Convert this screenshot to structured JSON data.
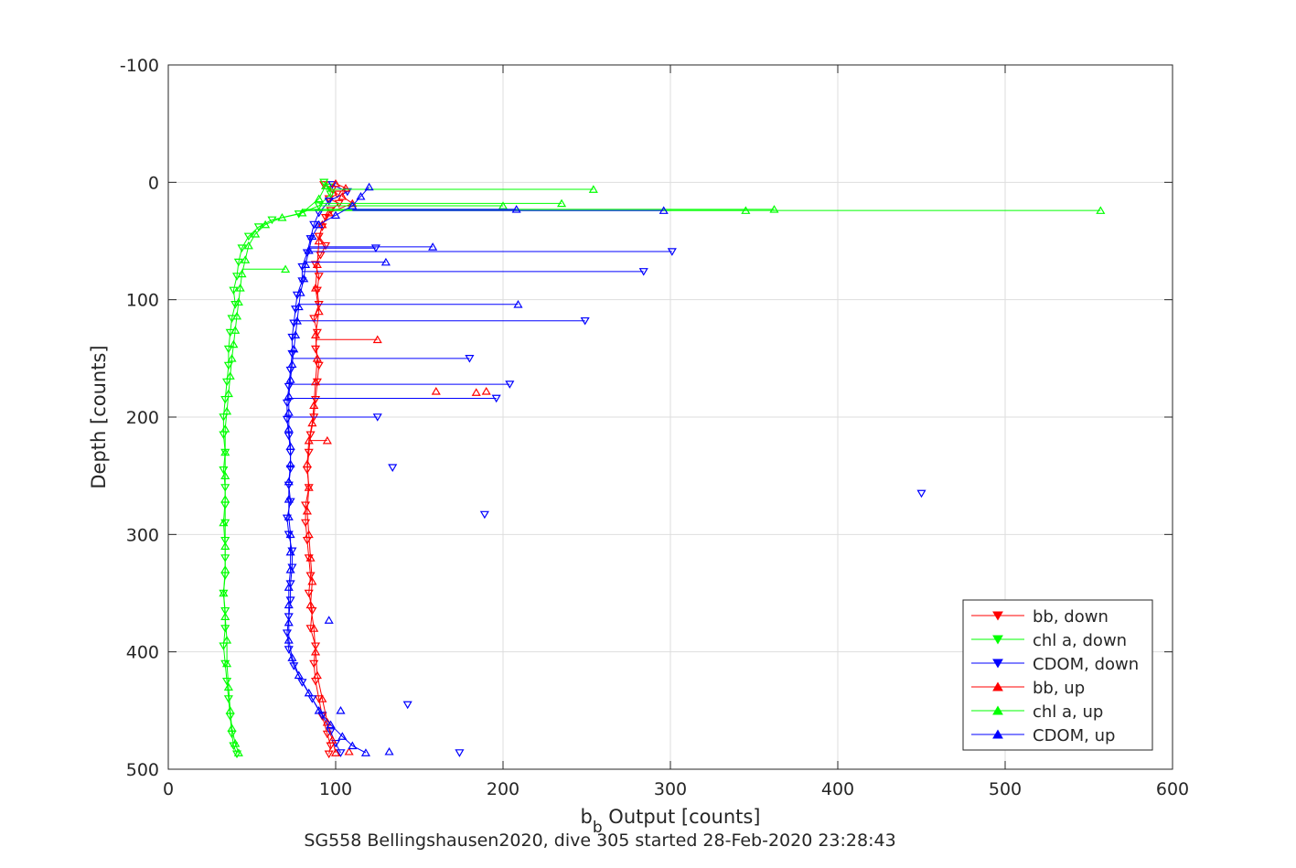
{
  "chart_data": {
    "type": "line",
    "title": "SG558 Bellingshausen2020, dive 305 started 28-Feb-2020 23:28:43",
    "xlabel_main": "b",
    "xlabel_sub": "b",
    "xlabel_rest": " Output [counts]",
    "ylabel": "Depth [counts]",
    "xlim": [
      0,
      600
    ],
    "ylim": [
      -100,
      500
    ],
    "y_reversed": true,
    "grid": true,
    "legend_position": "bottom-right",
    "xticks": [
      0,
      100,
      200,
      300,
      400,
      500,
      600
    ],
    "yticks": [
      -100,
      0,
      100,
      200,
      300,
      400,
      500
    ],
    "xtick_labels": [
      "0",
      "100",
      "200",
      "300",
      "400",
      "500",
      "600"
    ],
    "ytick_labels": [
      "-100",
      "0",
      "100",
      "200",
      "300",
      "400",
      "500"
    ],
    "series": [
      {
        "name": "bb, down",
        "color": "#ff0000",
        "marker": "triangle-down",
        "points": [
          [
            93,
            2
          ],
          [
            98,
            6
          ],
          [
            101,
            10
          ],
          [
            96,
            14
          ],
          [
            102,
            18
          ],
          [
            97,
            24
          ],
          [
            94,
            30
          ],
          [
            92,
            38
          ],
          [
            90,
            46
          ],
          [
            94,
            54
          ],
          [
            91,
            62
          ],
          [
            88,
            70
          ],
          [
            90,
            80
          ],
          [
            89,
            92
          ],
          [
            90,
            104
          ],
          [
            87,
            116
          ],
          [
            89,
            128
          ],
          [
            88,
            142
          ],
          [
            90,
            156
          ],
          [
            89,
            170
          ],
          [
            88,
            185
          ],
          [
            87,
            200
          ],
          [
            85,
            215
          ],
          [
            84,
            230
          ],
          [
            83,
            245
          ],
          [
            84,
            260
          ],
          [
            82,
            275
          ],
          [
            82,
            290
          ],
          [
            83,
            305
          ],
          [
            84,
            320
          ],
          [
            85,
            335
          ],
          [
            84,
            350
          ],
          [
            86,
            365
          ],
          [
            85,
            380
          ],
          [
            88,
            395
          ],
          [
            87,
            410
          ],
          [
            88,
            425
          ],
          [
            90,
            440
          ],
          [
            92,
            455
          ],
          [
            95,
            470
          ],
          [
            97,
            480
          ],
          [
            96,
            487
          ]
        ]
      },
      {
        "name": "chl a, down",
        "color": "#00ff00",
        "marker": "triangle-down",
        "points": [
          [
            93,
            0
          ],
          [
            96,
            4
          ],
          [
            97,
            10
          ],
          [
            90,
            20
          ],
          [
            78,
            27
          ],
          [
            62,
            32
          ],
          [
            54,
            38
          ],
          [
            48,
            46
          ],
          [
            44,
            56
          ],
          [
            42,
            68
          ],
          [
            41,
            80
          ],
          [
            39,
            92
          ],
          [
            40,
            104
          ],
          [
            38,
            116
          ],
          [
            37,
            128
          ],
          [
            36,
            142
          ],
          [
            36,
            156
          ],
          [
            35,
            170
          ],
          [
            34,
            185
          ],
          [
            33,
            200
          ],
          [
            33,
            215
          ],
          [
            34,
            230
          ],
          [
            33,
            245
          ],
          [
            34,
            260
          ],
          [
            34,
            275
          ],
          [
            34,
            290
          ],
          [
            34,
            305
          ],
          [
            34,
            320
          ],
          [
            34,
            335
          ],
          [
            33,
            350
          ],
          [
            34,
            365
          ],
          [
            34,
            380
          ],
          [
            33,
            395
          ],
          [
            34,
            410
          ],
          [
            35,
            425
          ],
          [
            36,
            440
          ],
          [
            37,
            455
          ],
          [
            38,
            470
          ],
          [
            39,
            480
          ],
          [
            41,
            487
          ]
        ]
      },
      {
        "name": "CDOM, down",
        "color": "#0000ff",
        "marker": "triangle-down",
        "points": [
          [
            98,
            2
          ],
          [
            107,
            8
          ],
          [
            96,
            16
          ],
          [
            90,
            26
          ],
          [
            87,
            36
          ],
          [
            85,
            48
          ],
          [
            83,
            60
          ],
          [
            80,
            72
          ],
          [
            80,
            84
          ],
          [
            77,
            96
          ],
          [
            76,
            108
          ],
          [
            75,
            120
          ],
          [
            74,
            132
          ],
          [
            74,
            146
          ],
          [
            73,
            160
          ],
          [
            72,
            174
          ],
          [
            71,
            188
          ],
          [
            71,
            202
          ],
          [
            72,
            216
          ],
          [
            73,
            230
          ],
          [
            73,
            244
          ],
          [
            72,
            258
          ],
          [
            73,
            272
          ],
          [
            71,
            286
          ],
          [
            72,
            300
          ],
          [
            74,
            314
          ],
          [
            74,
            328
          ],
          [
            73,
            342
          ],
          [
            73,
            356
          ],
          [
            72,
            370
          ],
          [
            71,
            384
          ],
          [
            72,
            398
          ],
          [
            75,
            412
          ],
          [
            80,
            426
          ],
          [
            86,
            440
          ],
          [
            92,
            454
          ],
          [
            97,
            468
          ],
          [
            100,
            478
          ],
          [
            103,
            486
          ]
        ],
        "spikes": [
          [
            124,
            56
          ],
          [
            301,
            59
          ],
          [
            284,
            76
          ],
          [
            249,
            118
          ],
          [
            180,
            150
          ],
          [
            204,
            172
          ],
          [
            196,
            184
          ],
          [
            125,
            200
          ],
          [
            134,
            243
          ],
          [
            189,
            283
          ],
          [
            450,
            265
          ],
          [
            143,
            445
          ],
          [
            174,
            486
          ]
        ]
      },
      {
        "name": "bb, up",
        "color": "#ff0000",
        "marker": "triangle-up",
        "points": [
          [
            100,
            1
          ],
          [
            106,
            5
          ],
          [
            104,
            12
          ],
          [
            110,
            18
          ],
          [
            96,
            26
          ],
          [
            92,
            36
          ],
          [
            90,
            50
          ],
          [
            89,
            70
          ],
          [
            88,
            90
          ],
          [
            90,
            110
          ],
          [
            88,
            130
          ],
          [
            89,
            150
          ],
          [
            88,
            170
          ],
          [
            87,
            190
          ],
          [
            86,
            205
          ],
          [
            84,
            220
          ],
          [
            83,
            240
          ],
          [
            84,
            260
          ],
          [
            83,
            280
          ],
          [
            84,
            300
          ],
          [
            85,
            320
          ],
          [
            86,
            340
          ],
          [
            85,
            360
          ],
          [
            87,
            380
          ],
          [
            88,
            400
          ],
          [
            89,
            420
          ],
          [
            92,
            440
          ],
          [
            95,
            460
          ],
          [
            98,
            475
          ],
          [
            100,
            486
          ]
        ],
        "spikes": [
          [
            160,
            178
          ],
          [
            184,
            179
          ],
          [
            190,
            178
          ],
          [
            125,
            134
          ],
          [
            95,
            220
          ],
          [
            108,
            485
          ]
        ]
      },
      {
        "name": "chl a, up",
        "color": "#00ff00",
        "marker": "triangle-up",
        "points": [
          [
            94,
            3
          ],
          [
            90,
            14
          ],
          [
            80,
            26
          ],
          [
            68,
            30
          ],
          [
            58,
            36
          ],
          [
            52,
            44
          ],
          [
            48,
            54
          ],
          [
            46,
            66
          ],
          [
            44,
            78
          ],
          [
            43,
            90
          ],
          [
            42,
            102
          ],
          [
            41,
            114
          ],
          [
            40,
            126
          ],
          [
            39,
            138
          ],
          [
            38,
            150
          ],
          [
            37,
            165
          ],
          [
            36,
            180
          ],
          [
            35,
            195
          ],
          [
            34,
            210
          ],
          [
            34,
            230
          ],
          [
            34,
            250
          ],
          [
            34,
            270
          ],
          [
            33,
            290
          ],
          [
            34,
            310
          ],
          [
            34,
            330
          ],
          [
            33,
            350
          ],
          [
            34,
            370
          ],
          [
            35,
            390
          ],
          [
            35,
            410
          ],
          [
            36,
            430
          ],
          [
            37,
            450
          ],
          [
            38,
            465
          ],
          [
            40,
            478
          ],
          [
            42,
            486
          ]
        ],
        "spikes": [
          [
            254,
            6
          ],
          [
            557,
            24
          ],
          [
            362,
            23
          ],
          [
            345,
            24
          ],
          [
            235,
            18
          ],
          [
            200,
            20
          ],
          [
            70,
            74
          ]
        ]
      },
      {
        "name": "CDOM, up",
        "color": "#0000ff",
        "marker": "triangle-up",
        "points": [
          [
            120,
            4
          ],
          [
            115,
            12
          ],
          [
            110,
            20
          ],
          [
            100,
            28
          ],
          [
            90,
            36
          ],
          [
            86,
            46
          ],
          [
            84,
            58
          ],
          [
            82,
            70
          ],
          [
            81,
            82
          ],
          [
            79,
            94
          ],
          [
            78,
            106
          ],
          [
            77,
            118
          ],
          [
            76,
            130
          ],
          [
            75,
            142
          ],
          [
            74,
            155
          ],
          [
            73,
            168
          ],
          [
            72,
            182
          ],
          [
            72,
            196
          ],
          [
            72,
            210
          ],
          [
            73,
            225
          ],
          [
            73,
            240
          ],
          [
            72,
            255
          ],
          [
            72,
            270
          ],
          [
            72,
            285
          ],
          [
            73,
            300
          ],
          [
            73,
            315
          ],
          [
            73,
            330
          ],
          [
            72,
            345
          ],
          [
            72,
            360
          ],
          [
            72,
            375
          ],
          [
            72,
            390
          ],
          [
            74,
            405
          ],
          [
            78,
            420
          ],
          [
            84,
            435
          ],
          [
            90,
            450
          ],
          [
            97,
            462
          ],
          [
            104,
            472
          ],
          [
            110,
            480
          ],
          [
            118,
            486
          ]
        ],
        "spikes": [
          [
            296,
            24
          ],
          [
            208,
            23
          ],
          [
            158,
            55
          ],
          [
            130,
            68
          ],
          [
            209,
            104
          ],
          [
            96,
            373
          ],
          [
            132,
            485
          ],
          [
            103,
            450
          ]
        ]
      }
    ]
  }
}
